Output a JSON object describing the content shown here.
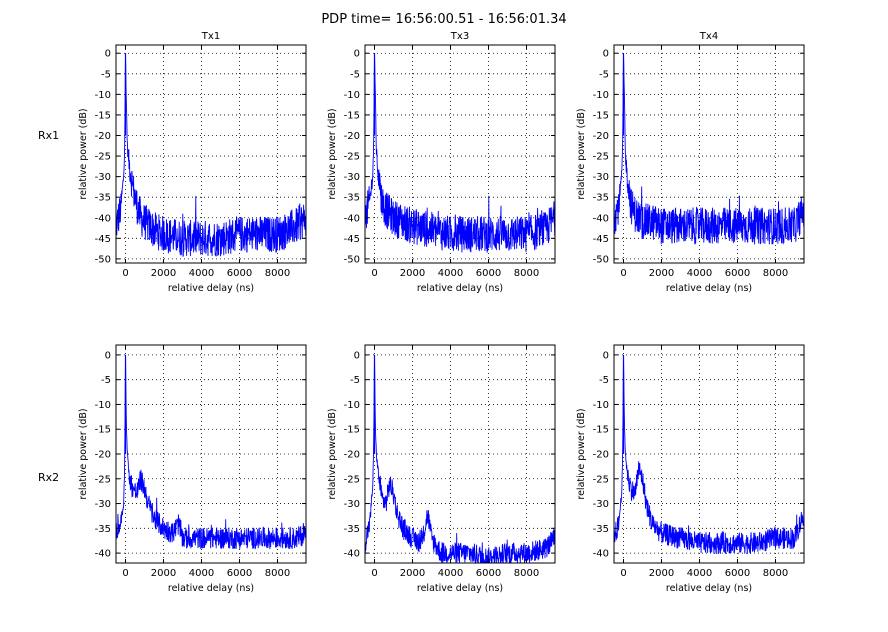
{
  "figure": {
    "suptitle": "PDP time= 16:56:00.51 - 16:56:01.34",
    "row_labels": [
      "Rx1",
      "Rx2"
    ],
    "col_titles": [
      "Tx1",
      "Tx3",
      "Tx4"
    ]
  },
  "colors": {
    "line": "#0000ff",
    "axes": "#000000",
    "grid": "#000000",
    "background": "#ffffff"
  },
  "chart_data": [
    {
      "type": "line",
      "row": 0,
      "col": 0,
      "title": "Tx1",
      "xlabel": "relative delay (ns)",
      "ylabel": "relative power (dB)",
      "xlim": [
        -500,
        9500
      ],
      "ylim": [
        -51,
        2
      ],
      "grid": true,
      "xticks": [
        0,
        2000,
        4000,
        6000,
        8000
      ],
      "yticks": [
        0,
        -5,
        -10,
        -15,
        -20,
        -25,
        -30,
        -35,
        -40,
        -45,
        -50
      ],
      "series": [
        {
          "x": [
            -500,
            -250,
            -100,
            -50,
            0,
            50,
            100,
            200,
            400,
            600,
            800,
            1000,
            1500,
            2000,
            3000,
            4000,
            5000,
            6000,
            7000,
            8000,
            9000,
            9500
          ],
          "y": [
            -42,
            -38,
            -30,
            -25,
            0,
            -13,
            -23,
            -27,
            -33,
            -37,
            -40,
            -41,
            -43,
            -44,
            -45,
            -45,
            -45,
            -44,
            -44,
            -44,
            -42,
            -40
          ]
        }
      ]
    },
    {
      "type": "line",
      "row": 0,
      "col": 1,
      "title": "Tx3",
      "xlabel": "relative delay (ns)",
      "ylabel": "relative power (dB)",
      "xlim": [
        -500,
        9500
      ],
      "ylim": [
        -51,
        2
      ],
      "grid": true,
      "xticks": [
        0,
        2000,
        4000,
        6000,
        8000
      ],
      "yticks": [
        0,
        -5,
        -10,
        -15,
        -20,
        -25,
        -30,
        -35,
        -40,
        -45,
        -50
      ],
      "series": [
        {
          "x": [
            -500,
            -250,
            -100,
            -50,
            0,
            50,
            100,
            200,
            400,
            600,
            800,
            1000,
            1500,
            2000,
            3000,
            4000,
            5000,
            6000,
            7000,
            8000,
            9000,
            9500
          ],
          "y": [
            -40,
            -36,
            -30,
            -24,
            0,
            -11,
            -24,
            -30,
            -36,
            -38,
            -39,
            -40,
            -41,
            -42,
            -43,
            -44,
            -44,
            -44,
            -44,
            -44,
            -43,
            -40
          ]
        }
      ]
    },
    {
      "type": "line",
      "row": 0,
      "col": 2,
      "title": "Tx4",
      "xlabel": "relative delay (ns)",
      "ylabel": "relative power (dB)",
      "xlim": [
        -500,
        9500
      ],
      "ylim": [
        -51,
        2
      ],
      "grid": true,
      "xticks": [
        0,
        2000,
        4000,
        6000,
        8000
      ],
      "yticks": [
        0,
        -5,
        -10,
        -15,
        -20,
        -25,
        -30,
        -35,
        -40,
        -45,
        -50
      ],
      "series": [
        {
          "x": [
            -500,
            -250,
            -100,
            -50,
            0,
            50,
            100,
            200,
            400,
            600,
            800,
            1000,
            1500,
            2000,
            3000,
            4000,
            5000,
            6000,
            7000,
            8000,
            9000,
            9500
          ],
          "y": [
            -40,
            -37,
            -30,
            -24,
            0,
            -11,
            -25,
            -30,
            -37,
            -39,
            -40,
            -41,
            -41,
            -42,
            -42,
            -42,
            -42,
            -42,
            -42,
            -42,
            -42,
            -38
          ]
        }
      ]
    },
    {
      "type": "line",
      "row": 1,
      "col": 0,
      "title": "",
      "xlabel": "relative delay (ns)",
      "ylabel": "relative power (dB)",
      "xlim": [
        -500,
        9500
      ],
      "ylim": [
        -42,
        2
      ],
      "grid": true,
      "xticks": [
        0,
        2000,
        4000,
        6000,
        8000
      ],
      "yticks": [
        0,
        -5,
        -10,
        -15,
        -20,
        -25,
        -30,
        -35,
        -40
      ],
      "series": [
        {
          "x": [
            -500,
            -250,
            -100,
            -50,
            0,
            50,
            100,
            200,
            400,
            600,
            800,
            1000,
            1200,
            1500,
            2000,
            2500,
            2800,
            3000,
            4000,
            5000,
            6000,
            7000,
            8000,
            9000,
            9500
          ],
          "y": [
            -36,
            -34,
            -30,
            -24,
            0,
            -15,
            -20,
            -25,
            -27,
            -28,
            -25,
            -27,
            -30,
            -33,
            -35,
            -36,
            -34,
            -37,
            -37,
            -37,
            -37,
            -37,
            -37,
            -37,
            -36
          ]
        }
      ]
    },
    {
      "type": "line",
      "row": 1,
      "col": 1,
      "title": "",
      "xlabel": "relative delay (ns)",
      "ylabel": "relative power (dB)",
      "xlim": [
        -500,
        9500
      ],
      "ylim": [
        -42,
        2
      ],
      "grid": true,
      "xticks": [
        0,
        2000,
        4000,
        6000,
        8000
      ],
      "yticks": [
        0,
        -5,
        -10,
        -15,
        -20,
        -25,
        -30,
        -35,
        -40
      ],
      "series": [
        {
          "x": [
            -500,
            -250,
            -100,
            -50,
            0,
            50,
            100,
            200,
            400,
            600,
            800,
            1000,
            1200,
            1500,
            2000,
            2500,
            2800,
            3000,
            3500,
            4000,
            5000,
            6000,
            7000,
            8000,
            9000,
            9500
          ],
          "y": [
            -38,
            -34,
            -27,
            -20,
            0,
            -15,
            -20,
            -24,
            -29,
            -30,
            -26,
            -28,
            -32,
            -35,
            -37,
            -38,
            -32,
            -37,
            -40,
            -40,
            -40,
            -41,
            -40,
            -40,
            -39,
            -37
          ]
        }
      ]
    },
    {
      "type": "line",
      "row": 1,
      "col": 2,
      "title": "",
      "xlabel": "relative delay (ns)",
      "ylabel": "relative power (dB)",
      "xlim": [
        -500,
        9500
      ],
      "ylim": [
        -42,
        2
      ],
      "grid": true,
      "xticks": [
        0,
        2000,
        4000,
        6000,
        8000
      ],
      "yticks": [
        0,
        -5,
        -10,
        -15,
        -20,
        -25,
        -30,
        -35,
        -40
      ],
      "series": [
        {
          "x": [
            -500,
            -250,
            -100,
            -50,
            0,
            50,
            100,
            200,
            400,
            600,
            800,
            1000,
            1200,
            1500,
            2000,
            3000,
            4000,
            5000,
            6000,
            7000,
            8000,
            9000,
            9500
          ],
          "y": [
            -37,
            -34,
            -28,
            -22,
            0,
            -14,
            -20,
            -24,
            -27,
            -28,
            -23,
            -25,
            -30,
            -34,
            -36,
            -37,
            -38,
            -38,
            -38,
            -38,
            -37,
            -37,
            -32
          ]
        }
      ]
    }
  ]
}
